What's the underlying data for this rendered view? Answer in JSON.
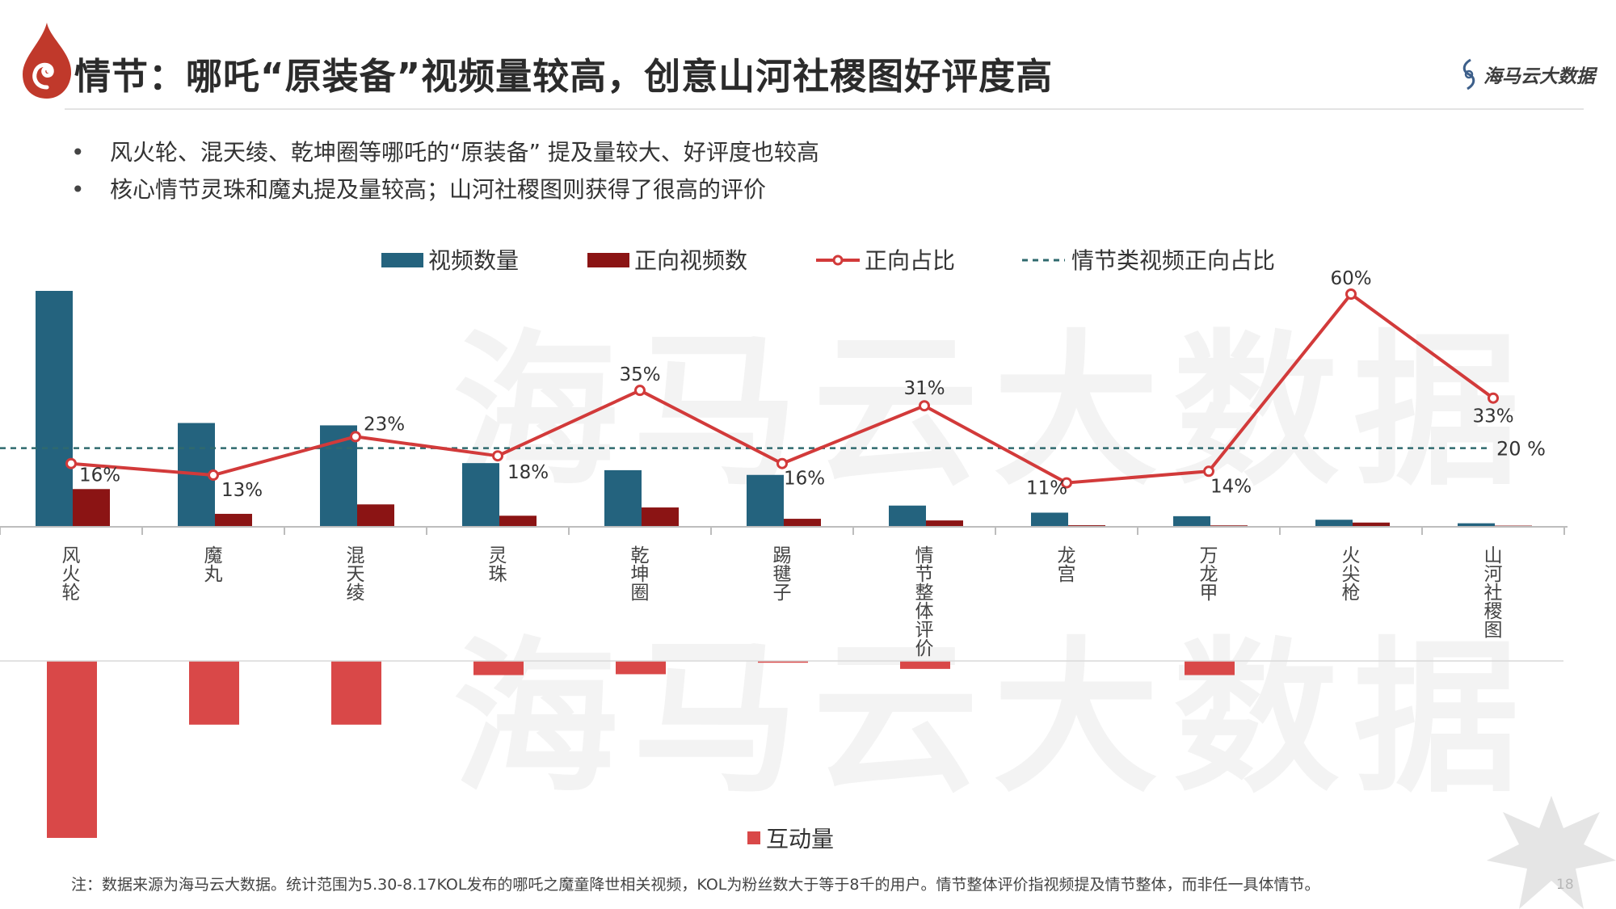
{
  "header": {
    "title": "情节：哪吒“原装备”视频量较高，创意山河社稷图好评度高",
    "brand": "海马云大数据"
  },
  "bullets": [
    "风火轮、混天绫、乾坤圈等哪吒的“原装备” 提及量较大、好评度也较高",
    "核心情节灵珠和魔丸提及量较高；山河社稷图则获得了很高的评价"
  ],
  "watermark": "海马云大数据",
  "chart_data": {
    "type": "bar",
    "categories": [
      "风火轮",
      "魔丸",
      "混天绫",
      "灵珠",
      "乾坤圈",
      "踢毽子",
      "情节整体评价",
      "龙宫",
      "万龙甲",
      "火尖枪",
      "山河社稷图"
    ],
    "series": [
      {
        "name": "视频数量",
        "type": "bar",
        "color": "#24637e",
        "values": [
          100,
          44,
          43,
          27,
          24,
          22,
          9,
          6,
          4.5,
          3,
          1.5
        ]
      },
      {
        "name": "正向视频数",
        "type": "bar",
        "color": "#8b1414",
        "values": [
          16,
          5.5,
          9.5,
          4.7,
          8.2,
          3.4,
          2.7,
          0.66,
          0.6,
          1.8,
          0.5
        ]
      },
      {
        "name": "正向占比",
        "type": "line",
        "color": "#d23a3a",
        "values": [
          16,
          13,
          23,
          18,
          35,
          16,
          31,
          11,
          14,
          60,
          33
        ],
        "labels": [
          "16%",
          "13%",
          "23%",
          "18%",
          "35%",
          "16%",
          "31%",
          "11%",
          "14%",
          "60%",
          "33%"
        ]
      },
      {
        "name": "情节类视频正向占比",
        "type": "reference",
        "color": "#2f6a6e",
        "value": 20,
        "label": "20 %"
      },
      {
        "name": "互动量",
        "type": "bar-down",
        "color": "#d94848",
        "values": [
          100,
          36,
          36,
          8,
          7.5,
          1,
          4.5,
          0,
          8,
          0,
          0
        ]
      }
    ],
    "legend_top": [
      "视频数量",
      "正向视频数",
      "正向占比",
      "情节类视频正向占比"
    ],
    "legend_bottom": [
      "互动量"
    ],
    "legend_placement": "top",
    "grid": false
  },
  "footnote": "注：数据来源为海马云大数据。统计范围为5.30-8.17KOL发布的哪吒之魔童降世相关视频，KOL为粉丝数大于等于8千的用户。情节整体评价指视频提及情节整体，而非任一具体情节。",
  "page_number": "18"
}
